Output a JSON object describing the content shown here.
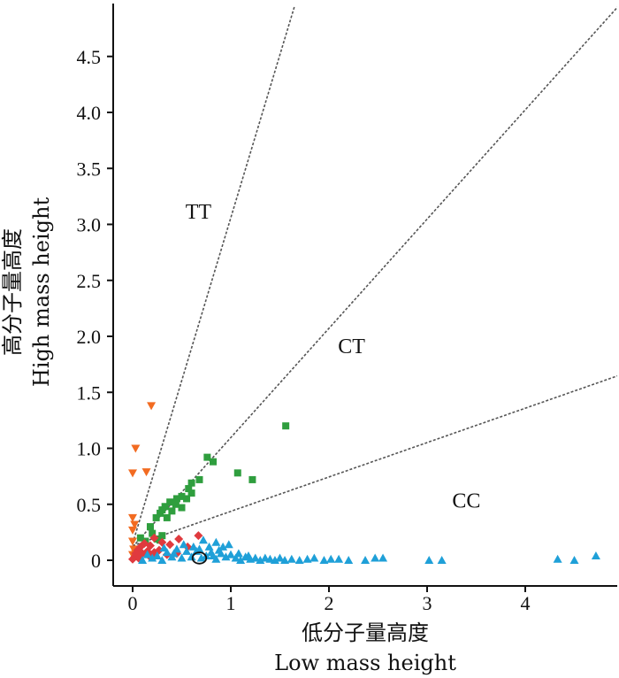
{
  "chart_data": {
    "type": "scatter",
    "title": "",
    "xlabel_cn": "低分子量高度",
    "xlabel_en": "Low mass height",
    "ylabel_cn": "高分子量高度",
    "ylabel_en": "High mass height",
    "xlim": [
      -0.2,
      4.95
    ],
    "ylim": [
      -0.25,
      4.95
    ],
    "x_ticks": [
      0,
      1,
      2,
      3,
      4
    ],
    "x_tick_labels": [
      "0",
      "1",
      "2",
      "3",
      "4"
    ],
    "y_ticks": [
      0,
      0.5,
      1.0,
      1.5,
      2.0,
      2.5,
      3.0,
      3.5,
      4.0,
      4.5
    ],
    "y_tick_labels": [
      "0",
      "0.5",
      "1.0",
      "1.5",
      "2.0",
      "2.5",
      "3.0",
      "3.5",
      "4.0",
      "4.5"
    ],
    "grid": false,
    "legend": "none",
    "region_labels": [
      {
        "text": "TT",
        "x": 0.67,
        "y": 3.05
      },
      {
        "text": "CT",
        "x": 2.23,
        "y": 1.85
      },
      {
        "text": "CC",
        "x": 3.4,
        "y": 0.47
      }
    ],
    "boundary_lines": [
      {
        "name": "TT",
        "points": [
          [
            0,
            0.15
          ],
          [
            1.65,
            4.95
          ]
        ]
      },
      {
        "name": "CT",
        "points": [
          [
            0,
            0.12
          ],
          [
            4.95,
            4.95
          ]
        ]
      },
      {
        "name": "CC",
        "points": [
          [
            0,
            0.13
          ],
          [
            4.95,
            1.65
          ]
        ]
      }
    ],
    "reference_circle": {
      "cx": 0.68,
      "cy": 0.02,
      "rx": 0.07,
      "ry": 0.05
    },
    "series": [
      {
        "marker": "triangle-down",
        "color": "#f26b21",
        "points": [
          [
            0.19,
            1.38
          ],
          [
            0.03,
            1.0
          ],
          [
            0.0,
            0.78
          ],
          [
            0.14,
            0.79
          ],
          [
            0.0,
            0.38
          ],
          [
            0.02,
            0.32
          ],
          [
            0.0,
            0.27
          ],
          [
            0.0,
            0.17
          ],
          [
            0.01,
            0.1
          ],
          [
            0.0,
            0.05
          ],
          [
            0.03,
            0.06
          ]
        ]
      },
      {
        "marker": "square",
        "color": "#2f9e3e",
        "points": [
          [
            1.56,
            1.2
          ],
          [
            0.76,
            0.92
          ],
          [
            0.82,
            0.88
          ],
          [
            1.07,
            0.78
          ],
          [
            1.22,
            0.72
          ],
          [
            0.6,
            0.69
          ],
          [
            0.68,
            0.72
          ],
          [
            0.57,
            0.64
          ],
          [
            0.6,
            0.6
          ],
          [
            0.5,
            0.57
          ],
          [
            0.55,
            0.55
          ],
          [
            0.45,
            0.55
          ],
          [
            0.38,
            0.52
          ],
          [
            0.44,
            0.5
          ],
          [
            0.5,
            0.47
          ],
          [
            0.33,
            0.48
          ],
          [
            0.3,
            0.45
          ],
          [
            0.4,
            0.44
          ],
          [
            0.28,
            0.42
          ],
          [
            0.24,
            0.38
          ],
          [
            0.35,
            0.38
          ],
          [
            0.18,
            0.3
          ],
          [
            0.2,
            0.24
          ],
          [
            0.3,
            0.22
          ],
          [
            0.25,
            0.19
          ],
          [
            0.13,
            0.17
          ],
          [
            0.08,
            0.2
          ],
          [
            0.28,
            0.18
          ]
        ]
      },
      {
        "marker": "diamond",
        "color": "#e03a3e",
        "points": [
          [
            0.67,
            0.22
          ],
          [
            0.47,
            0.19
          ],
          [
            0.56,
            0.12
          ],
          [
            0.38,
            0.14
          ],
          [
            0.3,
            0.16
          ],
          [
            0.22,
            0.2
          ],
          [
            0.18,
            0.13
          ],
          [
            0.12,
            0.15
          ],
          [
            0.08,
            0.12
          ],
          [
            0.05,
            0.09
          ],
          [
            0.03,
            0.06
          ],
          [
            0.1,
            0.06
          ],
          [
            0.15,
            0.08
          ],
          [
            0.22,
            0.07
          ],
          [
            0.27,
            0.09
          ],
          [
            0.35,
            0.05
          ],
          [
            0.02,
            0.03
          ],
          [
            0.06,
            0.02
          ],
          [
            0.0,
            0.01
          ],
          [
            0.45,
            0.06
          ],
          [
            0.18,
            0.03
          ]
        ]
      },
      {
        "marker": "triangle-up",
        "color": "#1fa0d8",
        "points": [
          [
            4.72,
            0.04
          ],
          [
            4.5,
            0.0
          ],
          [
            4.33,
            0.01
          ],
          [
            3.15,
            0.0
          ],
          [
            3.02,
            0.0
          ],
          [
            2.55,
            0.02
          ],
          [
            2.47,
            0.02
          ],
          [
            2.37,
            0.0
          ],
          [
            2.2,
            0.0
          ],
          [
            2.1,
            0.01
          ],
          [
            2.02,
            0.01
          ],
          [
            1.95,
            0.0
          ],
          [
            1.85,
            0.02
          ],
          [
            1.78,
            0.01
          ],
          [
            1.7,
            0.0
          ],
          [
            1.62,
            0.01
          ],
          [
            1.55,
            0.0
          ],
          [
            1.5,
            0.02
          ],
          [
            1.45,
            0.0
          ],
          [
            1.4,
            0.01
          ],
          [
            1.35,
            0.02
          ],
          [
            1.3,
            0.0
          ],
          [
            1.25,
            0.02
          ],
          [
            1.2,
            0.01
          ],
          [
            1.15,
            0.03
          ],
          [
            1.1,
            0.0
          ],
          [
            1.05,
            0.02
          ],
          [
            1.0,
            0.05
          ],
          [
            0.95,
            0.03
          ],
          [
            0.9,
            0.06
          ],
          [
            0.85,
            0.01
          ],
          [
            0.8,
            0.07
          ],
          [
            0.75,
            0.04
          ],
          [
            0.72,
            0.18
          ],
          [
            0.85,
            0.16
          ],
          [
            0.92,
            0.12
          ],
          [
            0.98,
            0.14
          ],
          [
            0.62,
            0.12
          ],
          [
            0.55,
            0.08
          ],
          [
            0.5,
            0.02
          ],
          [
            0.45,
            0.1
          ],
          [
            0.4,
            0.03
          ],
          [
            0.35,
            0.07
          ],
          [
            0.3,
            0.0
          ],
          [
            0.25,
            0.04
          ],
          [
            0.2,
            0.02
          ],
          [
            0.15,
            0.05
          ],
          [
            0.1,
            0.0
          ],
          [
            0.7,
            0.02
          ],
          [
            0.65,
            0.08
          ],
          [
            0.6,
            0.03
          ],
          [
            0.78,
            0.12
          ],
          [
            0.88,
            0.09
          ],
          [
            1.08,
            0.06
          ],
          [
            0.52,
            0.14
          ],
          [
            0.42,
            0.06
          ],
          [
            0.32,
            0.11
          ],
          [
            1.18,
            0.04
          ],
          [
            0.68,
            0.1
          ],
          [
            0.82,
            0.04
          ]
        ]
      }
    ]
  }
}
